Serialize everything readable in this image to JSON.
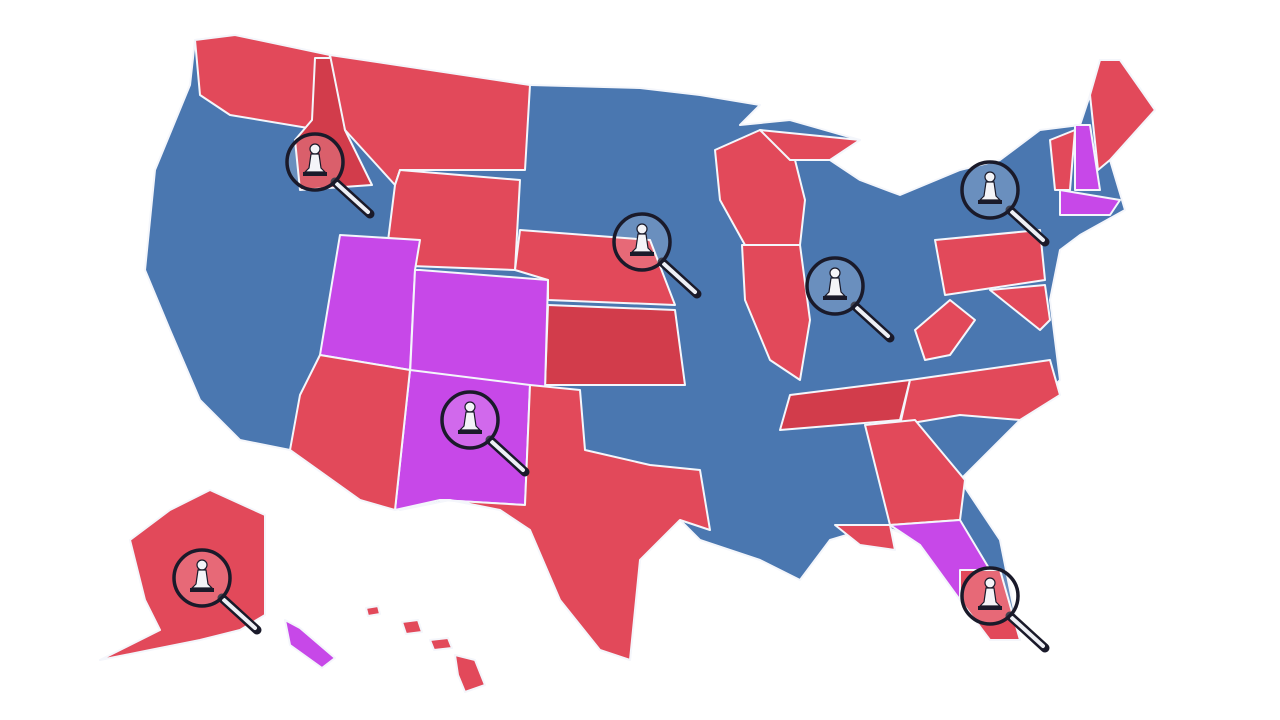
{
  "map": {
    "colors": {
      "blue": "#4a77b0",
      "red": "#e2495a",
      "dark_red": "#d23c4b",
      "purple": "#c748e8",
      "border": "#f4f6fb"
    },
    "marker_icon": "magnifier-chess-pawn-icon",
    "marker_count": 7
  }
}
